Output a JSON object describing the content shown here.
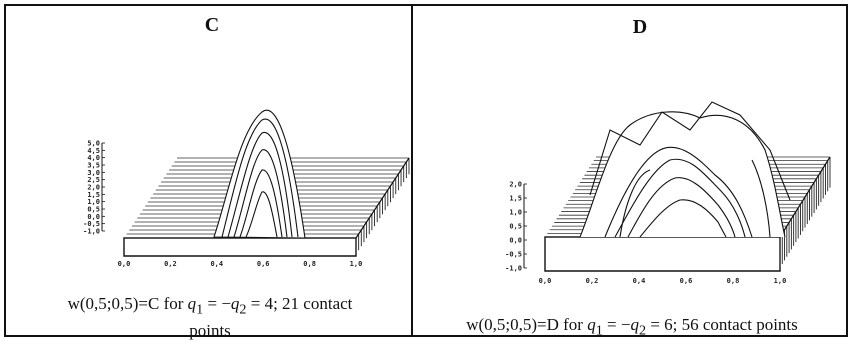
{
  "panels": [
    {
      "id": "C",
      "title": "C",
      "caption": {
        "prefix": "w(0,5;0,5)=C for ",
        "q1": "q",
        "sub1": "1",
        "eq": " = −",
        "q2": "q",
        "sub2": "2",
        "rest": " = 4; 21 contact",
        "line2": "points"
      },
      "y_ticks": [
        "5,0",
        "4,5",
        "4,0",
        "3,5",
        "3,0",
        "2,5",
        "2,0",
        "1,5",
        "1,0",
        "0,5",
        "0,0",
        "-0,5",
        "-1,0"
      ],
      "x_ticks": [
        "0,0",
        "0,2",
        "0,4",
        "0,6",
        "0,8",
        "1,0"
      ]
    },
    {
      "id": "D",
      "title": "D",
      "caption": {
        "prefix": "w(0,5;0,5)=D for ",
        "q1": "q",
        "sub1": "1",
        "eq": " = −",
        "q2": "q",
        "sub2": "2",
        "rest": " = 6; 56 contact points"
      },
      "y_ticks": [
        "2,0",
        "1,5",
        "1,0",
        "0,5",
        "0,0",
        "-0,5",
        "-1,0"
      ],
      "x_ticks": [
        "0,0",
        "0,2",
        "0,4",
        "0,6",
        "0,8",
        "1,0"
      ]
    }
  ]
}
